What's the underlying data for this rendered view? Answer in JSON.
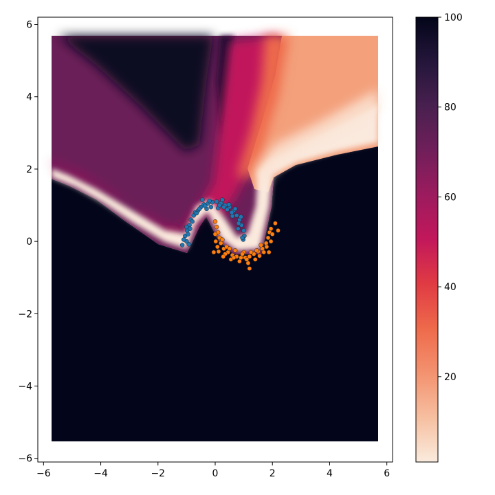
{
  "chart_data": [
    {
      "type": "scatter",
      "title": "",
      "xlabel": "",
      "ylabel": "",
      "xlim": [
        -6.2,
        6.2
      ],
      "ylim": [
        -6.1,
        6.2
      ],
      "x_ticks": [
        -6,
        -4,
        -2,
        0,
        2,
        4,
        6
      ],
      "x_tick_labels": [
        "−6",
        "−4",
        "−2",
        "0",
        "2",
        "4",
        "6"
      ],
      "y_ticks": [
        -6,
        -4,
        -2,
        0,
        2,
        4,
        6
      ],
      "y_tick_labels": [
        "−6",
        "−4",
        "−2",
        "0",
        "2",
        "4",
        "6"
      ],
      "grid": false,
      "background_heatmap": {
        "x_range": [
          -5.5,
          5.5
        ],
        "y_range": [
          -5.5,
          5.5
        ],
        "value_range": [
          0,
          100
        ],
        "colormap": "rocket_r",
        "description_values": "confidence field: near 0 along decision boundary, 100 in lower region"
      },
      "series": [
        {
          "color": "#1f77b4",
          "points": [
            [
              -1.0,
              0.0
            ],
            [
              -1.05,
              0.15
            ],
            [
              -0.98,
              0.3
            ],
            [
              -0.9,
              0.45
            ],
            [
              -0.85,
              0.6
            ],
            [
              -0.75,
              0.72
            ],
            [
              -0.6,
              0.85
            ],
            [
              -0.5,
              0.95
            ],
            [
              -0.4,
              1.02
            ],
            [
              -0.25,
              1.05
            ],
            [
              -0.1,
              1.08
            ],
            [
              0.05,
              1.1
            ],
            [
              0.2,
              1.05
            ],
            [
              0.35,
              1.0
            ],
            [
              0.5,
              0.95
            ],
            [
              0.65,
              0.85
            ],
            [
              0.75,
              0.72
            ],
            [
              0.85,
              0.6
            ],
            [
              0.92,
              0.45
            ],
            [
              1.0,
              0.3
            ],
            [
              1.02,
              0.15
            ],
            [
              0.98,
              0.05
            ],
            [
              -1.1,
              0.05
            ],
            [
              -0.95,
              0.2
            ],
            [
              -0.88,
              0.35
            ],
            [
              -0.7,
              0.8
            ],
            [
              -0.55,
              0.9
            ],
            [
              -0.45,
              1.15
            ],
            [
              -0.3,
              0.9
            ],
            [
              -0.15,
              0.95
            ],
            [
              0.1,
              0.92
            ],
            [
              0.25,
              1.15
            ],
            [
              0.42,
              0.88
            ],
            [
              0.58,
              0.8
            ],
            [
              0.7,
              0.9
            ],
            [
              0.82,
              0.5
            ],
            [
              0.9,
              0.68
            ],
            [
              -1.0,
              0.4
            ],
            [
              -0.8,
              0.55
            ],
            [
              -0.65,
              0.78
            ],
            [
              0.3,
              0.95
            ],
            [
              0.6,
              0.7
            ],
            [
              -1.15,
              -0.1
            ],
            [
              -0.92,
              -0.08
            ],
            [
              0.95,
              0.1
            ],
            [
              -0.2,
              1.12
            ],
            [
              0.15,
              1.0
            ],
            [
              -0.35,
              0.98
            ],
            [
              0.48,
              1.02
            ],
            [
              0.8,
              0.35
            ]
          ]
        },
        {
          "color": "#ff7f0e",
          "points": [
            [
              0.0,
              0.55
            ],
            [
              0.05,
              0.4
            ],
            [
              0.1,
              0.25
            ],
            [
              0.15,
              0.1
            ],
            [
              0.2,
              -0.05
            ],
            [
              0.3,
              -0.2
            ],
            [
              0.45,
              -0.3
            ],
            [
              0.6,
              -0.38
            ],
            [
              0.75,
              -0.42
            ],
            [
              0.9,
              -0.45
            ],
            [
              1.05,
              -0.45
            ],
            [
              1.2,
              -0.42
            ],
            [
              1.35,
              -0.35
            ],
            [
              1.5,
              -0.28
            ],
            [
              1.65,
              -0.2
            ],
            [
              1.78,
              -0.05
            ],
            [
              1.85,
              0.1
            ],
            [
              1.9,
              0.25
            ],
            [
              1.95,
              0.35
            ],
            [
              2.1,
              0.5
            ],
            [
              2.2,
              0.3
            ],
            [
              0.02,
              0.0
            ],
            [
              0.08,
              -0.15
            ],
            [
              0.25,
              0.05
            ],
            [
              0.35,
              -0.35
            ],
            [
              0.55,
              -0.5
            ],
            [
              0.7,
              -0.25
            ],
            [
              0.85,
              -0.55
            ],
            [
              1.0,
              -0.3
            ],
            [
              1.15,
              -0.6
            ],
            [
              1.25,
              -0.3
            ],
            [
              1.4,
              -0.5
            ],
            [
              1.55,
              -0.4
            ],
            [
              1.7,
              -0.3
            ],
            [
              1.8,
              -0.15
            ],
            [
              1.95,
              0.0
            ],
            [
              2.0,
              0.2
            ],
            [
              0.12,
              -0.28
            ],
            [
              0.4,
              -0.15
            ],
            [
              0.95,
              -0.35
            ],
            [
              1.2,
              -0.75
            ],
            [
              1.6,
              -0.1
            ],
            [
              0.0,
              0.2
            ],
            [
              -0.05,
              -0.3
            ],
            [
              0.65,
              -0.45
            ],
            [
              1.45,
              -0.25
            ],
            [
              1.88,
              -0.3
            ],
            [
              0.28,
              -0.42
            ],
            [
              1.1,
              -0.5
            ],
            [
              0.5,
              -0.2
            ]
          ]
        }
      ]
    },
    {
      "type": "heatmap",
      "title": "",
      "colorbar": true,
      "colormap": "rocket_r",
      "value_range": [
        1,
        100
      ],
      "ticks": [
        20,
        40,
        60,
        80,
        100
      ],
      "tick_labels": [
        "20",
        "40",
        "60",
        "80",
        "100"
      ]
    }
  ]
}
